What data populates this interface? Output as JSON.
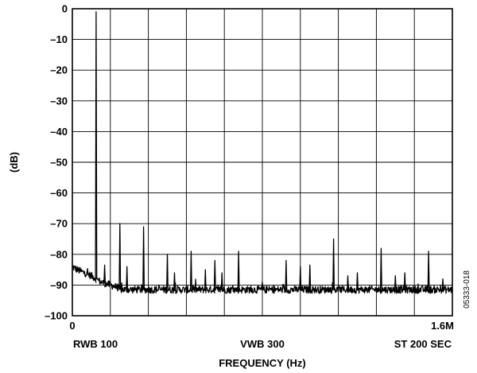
{
  "chart_data": {
    "type": "line",
    "xlabel": "FREQUENCY (Hz)",
    "ylabel": "(dB)",
    "ylim": [
      -100,
      0
    ],
    "y_ticks": [
      0,
      -10,
      -20,
      -30,
      -40,
      -50,
      -60,
      -70,
      -80,
      -90,
      -100
    ],
    "y_tick_labels": [
      "0",
      "–10",
      "–20",
      "–30",
      "–40",
      "–50",
      "–60",
      "–70",
      "–80",
      "–90",
      "–100"
    ],
    "xlim": [
      0,
      1.6
    ],
    "x_unit": "MHz",
    "x_tick_labels": {
      "start": "0",
      "end": "1.6M"
    },
    "x_divisions": 10,
    "y_divisions": 10,
    "grid": true,
    "annotations": {
      "left": "RWB 100",
      "center": "VWB 300",
      "right": "ST 200 SEC"
    },
    "figure_id": "05333-018",
    "noise_floor_db": -91.5,
    "low_freq_rise": [
      {
        "x": 0.0,
        "y": -84
      },
      {
        "x": 0.02,
        "y": -85
      },
      {
        "x": 0.05,
        "y": -86
      },
      {
        "x": 0.08,
        "y": -87
      },
      {
        "x": 0.12,
        "y": -89
      },
      {
        "x": 0.16,
        "y": -90
      },
      {
        "x": 0.2,
        "y": -91
      }
    ],
    "series": [
      {
        "values": [
          {
            "x": 0.1,
            "y": -1
          },
          {
            "x": 0.136,
            "y": -83.5
          },
          {
            "x": 0.2,
            "y": -70
          },
          {
            "x": 0.23,
            "y": -84
          },
          {
            "x": 0.3,
            "y": -71
          },
          {
            "x": 0.4,
            "y": -80
          },
          {
            "x": 0.43,
            "y": -86
          },
          {
            "x": 0.5,
            "y": -79
          },
          {
            "x": 0.56,
            "y": -85
          },
          {
            "x": 0.6,
            "y": -82
          },
          {
            "x": 0.63,
            "y": -86
          },
          {
            "x": 0.7,
            "y": -79
          },
          {
            "x": 0.8,
            "y": -89
          },
          {
            "x": 0.9,
            "y": -82
          },
          {
            "x": 0.96,
            "y": -84
          },
          {
            "x": 1.0,
            "y": -83.5
          },
          {
            "x": 1.1,
            "y": -75
          },
          {
            "x": 1.16,
            "y": -87
          },
          {
            "x": 1.2,
            "y": -86
          },
          {
            "x": 1.3,
            "y": -78
          },
          {
            "x": 1.36,
            "y": -87
          },
          {
            "x": 1.4,
            "y": -86
          },
          {
            "x": 1.5,
            "y": -79
          },
          {
            "x": 1.56,
            "y": -88
          }
        ]
      }
    ]
  }
}
